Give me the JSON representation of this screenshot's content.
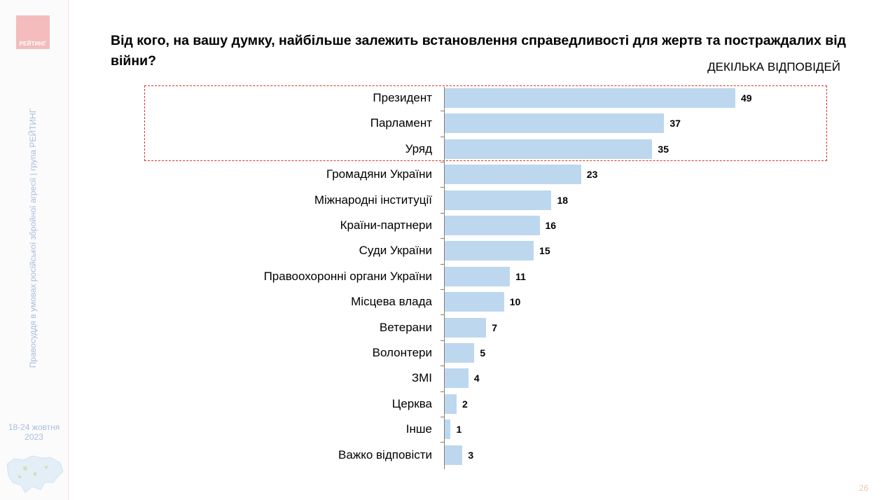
{
  "sidebar": {
    "logo_text": "РЕЙТИНГ",
    "vertical_text": "Правосуддя в умовах російської збройної агресії | група РЕЙТИНГ",
    "date_line1": "18-24 жовтня",
    "date_line2": "2023"
  },
  "title": "Від кого, на вашу думку, найбільше залежить встановлення справедливості для жертв та постраждалих від війни?",
  "subtitle": "ДЕКІЛЬКА ВІДПОВІДЕЙ",
  "page_number": "26",
  "colors": {
    "bar": "#bdd7ee",
    "highlight_border": "#d9302c",
    "logo": "#f4bcbc",
    "sidebar_text": "#a9bde0"
  },
  "chart_data": {
    "type": "bar",
    "orientation": "horizontal",
    "categories": [
      "Президент",
      "Парламент",
      "Уряд",
      "Громадяни України",
      "Міжнародні інституції",
      "Країни-партнери",
      "Суди України",
      "Правоохоронні органи України",
      "Місцева влада",
      "Ветерани",
      "Волонтери",
      "ЗМІ",
      "Церква",
      "Інше",
      "Важко відповісти"
    ],
    "values": [
      49,
      37,
      35,
      23,
      18,
      16,
      15,
      11,
      10,
      7,
      5,
      4,
      2,
      1,
      3
    ],
    "highlighted_categories": [
      "Президент",
      "Парламент",
      "Уряд"
    ],
    "xlim": [
      0,
      49
    ],
    "grid": false
  }
}
